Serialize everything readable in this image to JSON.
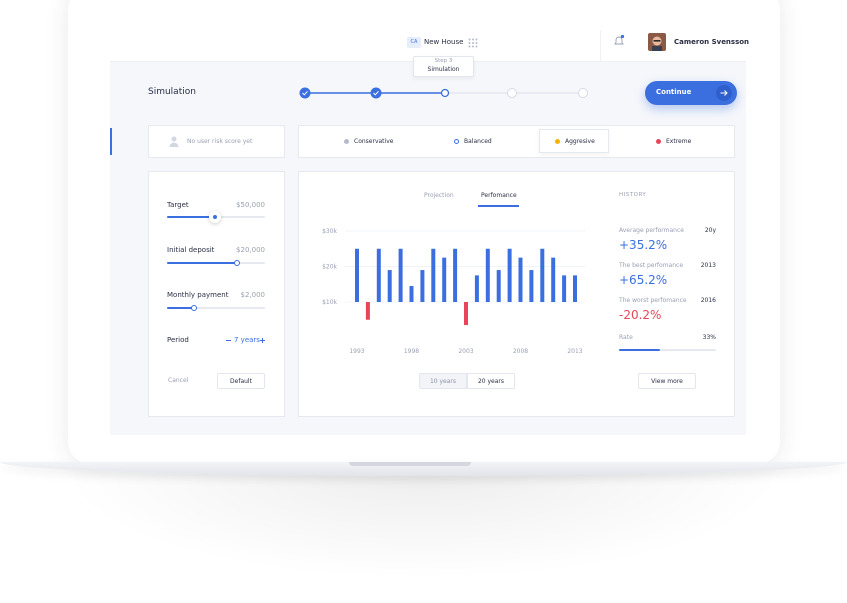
{
  "header": {
    "workspace_badge": "CA",
    "workspace": "New House",
    "user": "Cameron Svensson"
  },
  "page_title": "Simulation",
  "steps": {
    "tooltip_step": "Step 3",
    "tooltip_label": "Simulation"
  },
  "continue_button": "Continue",
  "risk": {
    "empty_note": "No user risk score yet",
    "options": [
      "Conservative",
      "Balanced",
      "Aggresive",
      "Extreme"
    ]
  },
  "inputs": {
    "target": {
      "label": "Target",
      "value": "$50,000"
    },
    "deposit": {
      "label": "Initial deposit",
      "value": "$20,000"
    },
    "monthly": {
      "label": "Monthly payment",
      "value": "$2,000"
    },
    "period": {
      "label": "Period",
      "value": "7 years"
    },
    "cancel": "Cancel",
    "default": "Default"
  },
  "tabs": [
    "Projection",
    "Perfomance"
  ],
  "chart_data": {
    "type": "bar",
    "categories": [
      "1993",
      null,
      null,
      null,
      null,
      "1998",
      null,
      null,
      null,
      null,
      "2003",
      null,
      null,
      null,
      null,
      "2008",
      null,
      null,
      null,
      null,
      "2013"
    ],
    "values": [
      25000,
      5000,
      25000,
      19000,
      25000,
      14500,
      19000,
      25000,
      22500,
      25000,
      3500,
      17500,
      25000,
      19000,
      25000,
      22500,
      19000,
      25000,
      22500,
      17500,
      17500
    ],
    "baseline": 10000,
    "color": "#3b6fe0",
    "below_baseline_color": "#e8455a",
    "ylim": [
      0,
      30000
    ],
    "yticks": [
      {
        "value": 10000,
        "label": "$10k"
      },
      {
        "value": 20000,
        "label": "$20k"
      },
      {
        "value": 30000,
        "label": "$30k"
      }
    ],
    "grid": true
  },
  "range_buttons": [
    "10 years",
    "20 years"
  ],
  "history": {
    "title": "HISTORY",
    "items": [
      {
        "label": "Average performance",
        "period": "20y",
        "value": "+35.2%"
      },
      {
        "label": "The best perfomance",
        "period": "2013",
        "value": "+65.2%"
      },
      {
        "label": "The worst perfomance",
        "period": "2016",
        "value": "-20.2%"
      }
    ],
    "rate": {
      "label": "Rate",
      "value": "33%"
    },
    "button": "View more"
  }
}
